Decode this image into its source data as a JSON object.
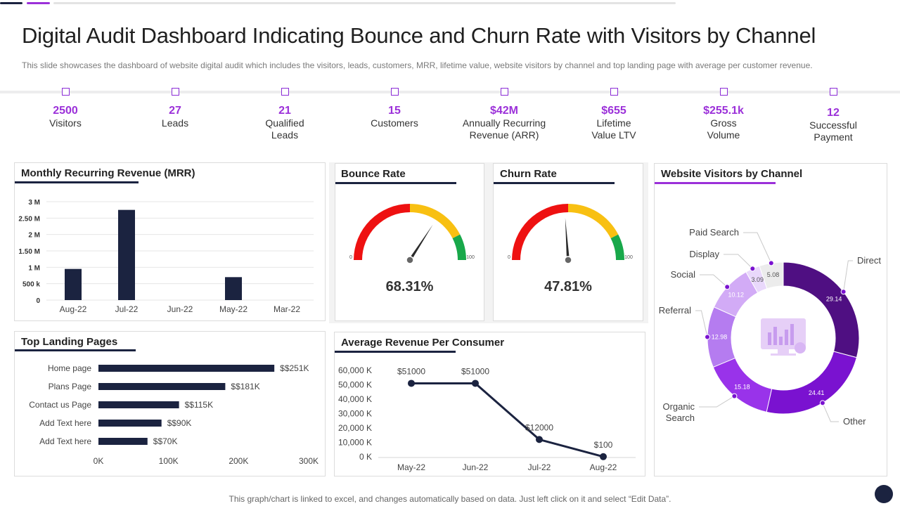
{
  "header": {
    "title": "Digital Audit Dashboard Indicating Bounce and Churn Rate with Visitors by Channel",
    "subtitle": "This slide showcases the dashboard of website digital audit which includes the visitors, leads, customers, MRR, lifetime value, website visitors by channel and top landing page with average per customer revenue."
  },
  "kpis": [
    {
      "value": "2500",
      "label": "Visitors"
    },
    {
      "value": "27",
      "label": "Leads"
    },
    {
      "value": "21",
      "label": "Qualified\nLeads"
    },
    {
      "value": "15",
      "label": "Customers"
    },
    {
      "value": "$42M",
      "label": "Annually Recurring\nRevenue (ARR)"
    },
    {
      "value": "$655",
      "label": "Lifetime\nValue LTV"
    },
    {
      "value": "$255.1k",
      "label": "Gross\nVolume"
    },
    {
      "value": "12",
      "label": "Successful\nPayment"
    }
  ],
  "panels": {
    "mrr_title": "Monthly Recurring Revenue (MRR)",
    "bounce_title": "Bounce Rate",
    "churn_title": "Churn  Rate",
    "visitors_title": "Website Visitors by Channel",
    "landing_title": "Top Landing Pages",
    "arpc_title": "Average Revenue Per Consumer"
  },
  "gauges": {
    "bounce": {
      "value": 68.31,
      "display": "68.31%",
      "min_label": "0",
      "max_label": "100"
    },
    "churn": {
      "value": 47.81,
      "display": "47.81%",
      "min_label": "0",
      "max_label": "100"
    }
  },
  "footer": {
    "note": "This graph/chart is linked to excel,  and changes automatically based on data. Just left click on it and select “Edit Data”."
  },
  "colors": {
    "accent": "#9b30d9",
    "navy": "#1b2340",
    "gauge_red": "#ee1111",
    "gauge_yellow": "#f8c012",
    "gauge_green": "#18a84a"
  },
  "chart_data": [
    {
      "id": "mrr",
      "type": "bar",
      "title": "Monthly Recurring Revenue (MRR)",
      "categories": [
        "Aug-22",
        "Jul-22",
        "Jun-22",
        "May-22",
        "Mar-22"
      ],
      "values": [
        950000,
        2750000,
        0,
        700000,
        0
      ],
      "ylim": [
        0,
        3000000
      ],
      "yticks": [
        {
          "v": 3000000,
          "label": "3 M"
        },
        {
          "v": 2500000,
          "label": "2.50 M"
        },
        {
          "v": 2000000,
          "label": "2 M"
        },
        {
          "v": 1500000,
          "label": "1.50 M"
        },
        {
          "v": 1000000,
          "label": "1 M"
        },
        {
          "v": 500000,
          "label": "500 k"
        },
        {
          "v": 0,
          "label": "0"
        }
      ],
      "grid": true
    },
    {
      "id": "landing",
      "type": "bar",
      "orientation": "horizontal",
      "title": "Top Landing Pages",
      "categories": [
        "Home page",
        "Plans Page",
        "Contact us Page",
        "Add Text here",
        "Add Text here"
      ],
      "values": [
        251,
        181,
        115,
        90,
        70
      ],
      "data_labels": [
        "$$251K",
        "$$181K",
        "$$115K",
        "$$90K",
        "$$70K"
      ],
      "xlim": [
        0,
        300
      ],
      "xticks": [
        {
          "v": 0,
          "label": "0K"
        },
        {
          "v": 100,
          "label": "100K"
        },
        {
          "v": 200,
          "label": "200K"
        },
        {
          "v": 300,
          "label": "300K"
        }
      ]
    },
    {
      "id": "arpc",
      "type": "line",
      "title": "Average Revenue Per Consumer",
      "categories": [
        "May-22",
        "Jun-22",
        "Jul-22",
        "Aug-22"
      ],
      "values": [
        51000,
        51000,
        12000,
        100
      ],
      "data_labels": [
        "$51000",
        "$51000",
        "$12000",
        "$100"
      ],
      "ylim": [
        0,
        60000
      ],
      "yticks": [
        {
          "v": 60000,
          "label": "60,000 K"
        },
        {
          "v": 50000,
          "label": "50,000 K"
        },
        {
          "v": 40000,
          "label": "40,000 K"
        },
        {
          "v": 30000,
          "label": "30,000 K"
        },
        {
          "v": 20000,
          "label": "20,000 K"
        },
        {
          "v": 10000,
          "label": "10,000 K"
        },
        {
          "v": 0,
          "label": "0 K"
        }
      ]
    },
    {
      "id": "channels",
      "type": "pie",
      "title": "Website Visitors by Channel",
      "slices": [
        {
          "label": "Direct",
          "value": 29.14,
          "color": "#4f0f82"
        },
        {
          "label": "Other",
          "value": 24.41,
          "color": "#7a12d0"
        },
        {
          "label": "Organic Search",
          "value": 15.18,
          "color": "#9933ea"
        },
        {
          "label": "Referral",
          "value": 12.98,
          "color": "#b57cf0"
        },
        {
          "label": "Social",
          "value": 10.12,
          "color": "#d2abf6"
        },
        {
          "label": "Display",
          "value": 3.09,
          "color": "#e9d8fb"
        },
        {
          "label": "Paid Search",
          "value": 5.08,
          "color": "#ececec"
        }
      ]
    }
  ]
}
